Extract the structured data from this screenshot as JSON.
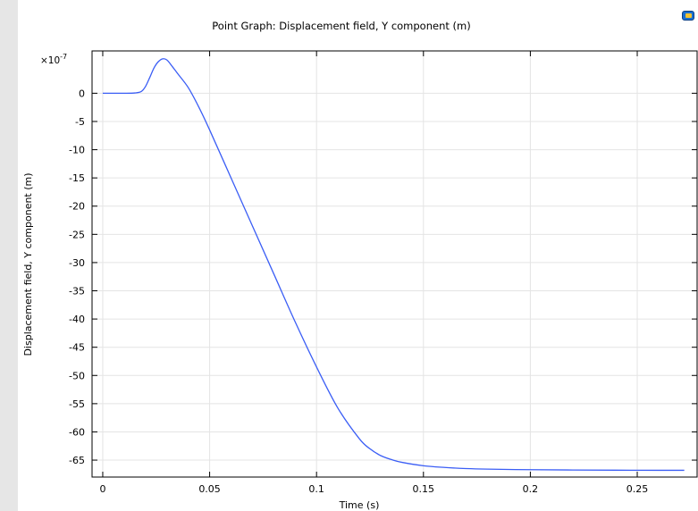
{
  "chart_data": {
    "type": "line",
    "title": "Point Graph: Displacement field, Y component (m)",
    "xlabel": "Time (s)",
    "ylabel": "Displacement field, Y component (m)",
    "y_multiplier_label": "×10",
    "y_multiplier_exponent": "-7",
    "xlim": [
      -0.005,
      0.278
    ],
    "ylim": [
      -68,
      7.5
    ],
    "x_ticks": [
      0,
      0.05,
      0.1,
      0.15,
      0.2,
      0.25
    ],
    "x_tick_labels": [
      "0",
      "0.05",
      "0.1",
      "0.15",
      "0.2",
      "0.25"
    ],
    "y_ticks": [
      0,
      -5,
      -10,
      -15,
      -20,
      -25,
      -30,
      -35,
      -40,
      -45,
      -50,
      -55,
      -60,
      -65
    ],
    "y_tick_labels": [
      "0",
      "-5",
      "-10",
      "-15",
      "-20",
      "-25",
      "-30",
      "-35",
      "-40",
      "-45",
      "-50",
      "-55",
      "-60",
      "-65"
    ],
    "grid": true,
    "line_color": "#3b5ef5",
    "series": [
      {
        "x": [
          0,
          0.005,
          0.01,
          0.015,
          0.018,
          0.02,
          0.022,
          0.024,
          0.026,
          0.028,
          0.03,
          0.032,
          0.035,
          0.04,
          0.045,
          0.05,
          0.06,
          0.07,
          0.08,
          0.09,
          0.1,
          0.11,
          0.12,
          0.125,
          0.13,
          0.135,
          0.14,
          0.15,
          0.16,
          0.17,
          0.18,
          0.2,
          0.22,
          0.24,
          0.26,
          0.272
        ],
        "y": [
          0,
          0,
          0,
          0.05,
          0.3,
          1.2,
          2.8,
          4.5,
          5.6,
          6.1,
          5.9,
          5.0,
          3.5,
          1.0,
          -2.5,
          -6.5,
          -15,
          -23.5,
          -32,
          -40.5,
          -48.5,
          -55.8,
          -61.2,
          -63.0,
          -64.2,
          -64.9,
          -65.4,
          -66.0,
          -66.3,
          -66.5,
          -66.6,
          -66.7,
          -66.75,
          -66.78,
          -66.8,
          -66.8
        ]
      }
    ]
  }
}
